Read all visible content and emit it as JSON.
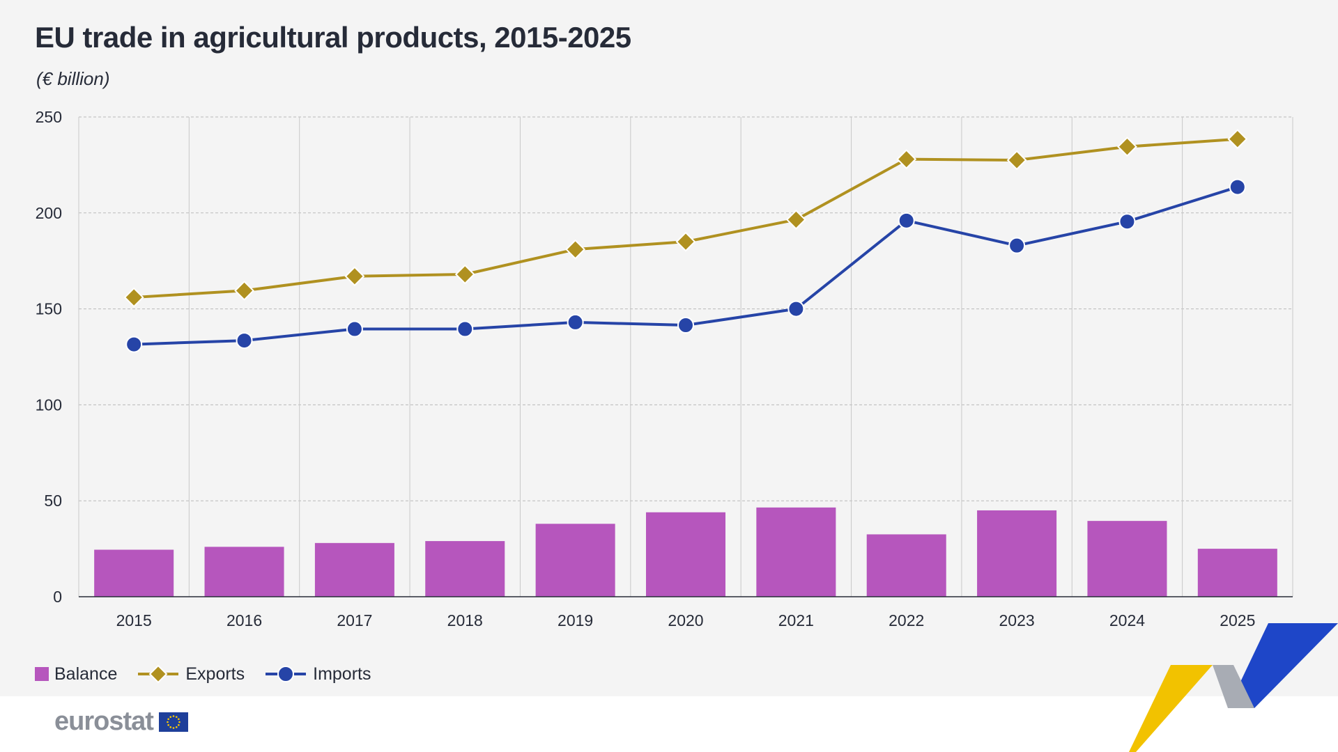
{
  "title": "EU trade in agricultural products, 2015-2025",
  "subtitle": "(€ billion)",
  "legend": {
    "balance": "Balance",
    "exports": "Exports",
    "imports": "Imports"
  },
  "logo": {
    "text": "eurostat"
  },
  "colors": {
    "balance": "#b656bd",
    "exports": "#b09120",
    "imports": "#2644a7",
    "background": "#f4f4f4"
  },
  "chart_data": {
    "type": "bar",
    "categories": [
      "2015",
      "2016",
      "2017",
      "2018",
      "2019",
      "2020",
      "2021",
      "2022",
      "2023",
      "2024",
      "2025"
    ],
    "series": [
      {
        "name": "Balance",
        "type": "bar",
        "values": [
          24.5,
          26,
          28,
          29,
          38,
          44,
          46.5,
          32.5,
          45,
          39.5,
          25
        ]
      },
      {
        "name": "Exports",
        "type": "line",
        "marker": "diamond",
        "values": [
          156,
          159.5,
          167,
          168,
          181,
          185,
          196.5,
          228,
          227.5,
          234.5,
          238.5
        ]
      },
      {
        "name": "Imports",
        "type": "line",
        "marker": "circle",
        "values": [
          131.5,
          133.5,
          139.5,
          139.5,
          143,
          141.5,
          150,
          196,
          183,
          195.5,
          213.5
        ]
      }
    ],
    "ylim": [
      0,
      250
    ],
    "yticks": [
      "0",
      "50",
      "100",
      "150",
      "200",
      "250"
    ],
    "grid": true,
    "legend_position": "bottom-left"
  }
}
